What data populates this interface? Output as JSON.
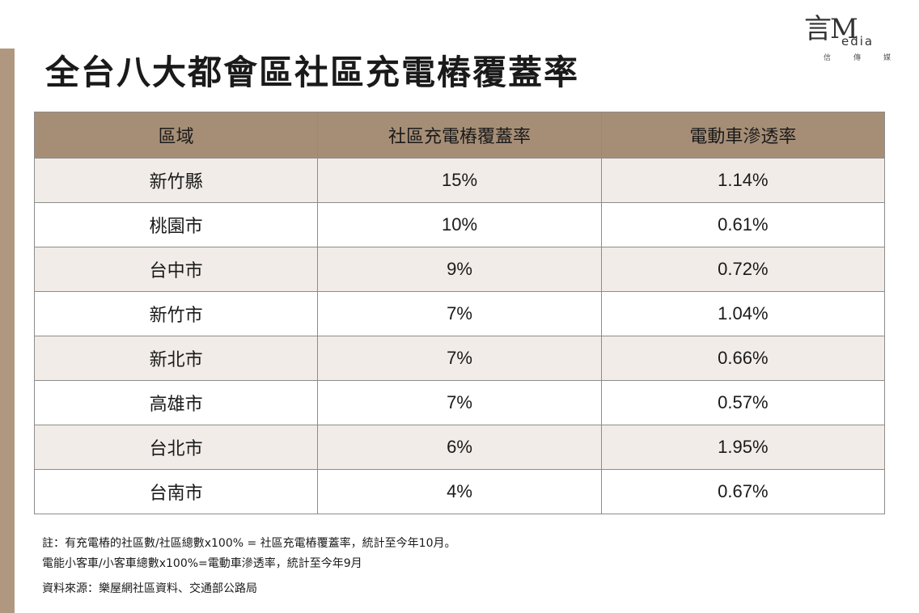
{
  "logo": {
    "main": "言M",
    "sub": "edia",
    "cn": "信傳媒"
  },
  "title": "全台八大都會區社區充電樁覆蓋率",
  "chart_data": {
    "type": "table",
    "columns": [
      "區域",
      "社區充電樁覆蓋率",
      "電動車滲透率"
    ],
    "rows": [
      [
        "新竹縣",
        "15%",
        "1.14%"
      ],
      [
        "桃園市",
        "10%",
        "0.61%"
      ],
      [
        "台中市",
        "9%",
        "0.72%"
      ],
      [
        "新竹市",
        "7%",
        "1.04%"
      ],
      [
        "新北市",
        "7%",
        "0.66%"
      ],
      [
        "高雄市",
        "7%",
        "0.57%"
      ],
      [
        "台北市",
        "6%",
        "1.95%"
      ],
      [
        "台南市",
        "4%",
        "0.67%"
      ]
    ]
  },
  "notes": {
    "line1": "註：有充電樁的社區數/社區總數x100% = 社區充電樁覆蓋率，統計至今年10月。",
    "line2": "電能小客車/小客車總數x100%=電動車滲透率，統計至今年9月",
    "source": "資料來源：樂屋網社區資料、交通部公路局"
  },
  "colors": {
    "header": "#a68e76",
    "stripe": "#f1ece7",
    "left_bar": "#b09880"
  }
}
